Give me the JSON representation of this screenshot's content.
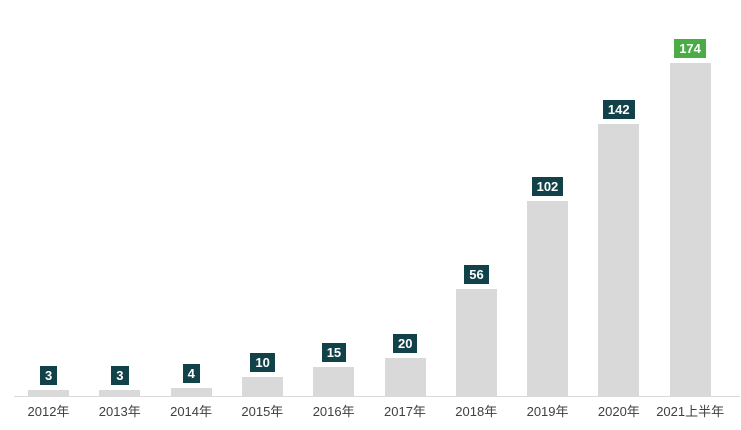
{
  "chart_data": {
    "type": "bar",
    "title": "",
    "xlabel": "",
    "ylabel": "",
    "categories": [
      "2012年",
      "2013年",
      "2014年",
      "2015年",
      "2016年",
      "2017年",
      "2018年",
      "2019年",
      "2020年",
      "2021上半年"
    ],
    "values": [
      3,
      3,
      4,
      10,
      15,
      20,
      56,
      102,
      142,
      174
    ],
    "ylim": [
      0,
      180
    ],
    "grid": false,
    "legend": false,
    "colors": {
      "bar": "#d9d9d9",
      "badge": "#11424a",
      "badge_last": "#4aac44",
      "badge_text": "#ffffff",
      "axis_line": "#d9d9d9",
      "tick_label": "#404040",
      "background": "#ffffff"
    }
  }
}
